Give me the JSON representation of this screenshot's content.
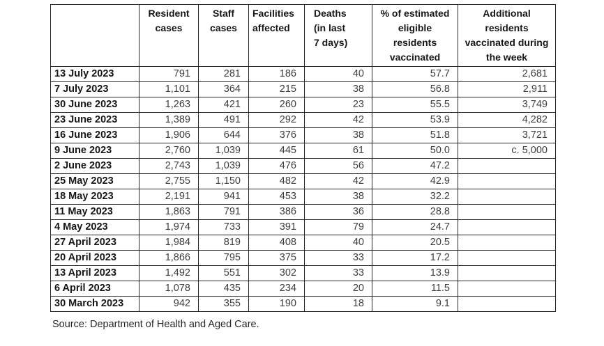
{
  "table": {
    "columns": [
      {
        "id": "date",
        "lines": []
      },
      {
        "id": "resident-cases",
        "lines": [
          "Resident",
          "cases"
        ]
      },
      {
        "id": "staff-cases",
        "lines": [
          "Staff",
          "cases"
        ]
      },
      {
        "id": "facilities-affected",
        "lines": [
          "Facilities",
          "affected"
        ]
      },
      {
        "id": "deaths-last-7-days",
        "lines": [
          "Deaths",
          "(in last",
          "7 days)"
        ]
      },
      {
        "id": "pct-eligible-residents-vaccinated",
        "lines": [
          "% of estimated",
          "eligible",
          "residents",
          "vaccinated"
        ]
      },
      {
        "id": "additional-residents-vaccinated",
        "lines": [
          "Additional",
          "residents",
          "vaccinated during",
          "the week"
        ]
      }
    ],
    "rows": [
      [
        "13 July 2023",
        "791",
        "281",
        "186",
        "40",
        "57.7",
        "2,681"
      ],
      [
        "7 July 2023",
        "1,101",
        "364",
        "215",
        "38",
        "56.8",
        "2,911"
      ],
      [
        "30 June 2023",
        "1,263",
        "421",
        "260",
        "23",
        "55.5",
        "3,749"
      ],
      [
        "23 June 2023",
        "1,389",
        "491",
        "292",
        "42",
        "53.9",
        "4,282"
      ],
      [
        "16 June 2023",
        "1,906",
        "644",
        "376",
        "38",
        "51.8",
        "3,721"
      ],
      [
        "9 June 2023",
        "2,760",
        "1,039",
        "445",
        "61",
        "50.0",
        "c. 5,000"
      ],
      [
        "2 June 2023",
        "2,743",
        "1,039",
        "476",
        "56",
        "47.2",
        ""
      ],
      [
        "25 May 2023",
        "2,755",
        "1,150",
        "482",
        "42",
        "42.9",
        ""
      ],
      [
        "18 May 2023",
        "2,191",
        "941",
        "453",
        "38",
        "32.2",
        ""
      ],
      [
        "11 May 2023",
        "1,863",
        "791",
        "386",
        "36",
        "28.8",
        ""
      ],
      [
        "4 May 2023",
        "1,974",
        "733",
        "391",
        "79",
        "24.7",
        ""
      ],
      [
        "27 April 2023",
        "1,984",
        "819",
        "408",
        "40",
        "20.5",
        ""
      ],
      [
        "20 April 2023",
        "1,866",
        "795",
        "375",
        "33",
        "17.2",
        ""
      ],
      [
        "13 April 2023",
        "1,492",
        "551",
        "302",
        "33",
        "13.9",
        ""
      ],
      [
        "6 April 2023",
        "1,078",
        "435",
        "234",
        "20",
        "11.5",
        ""
      ],
      [
        "30 March 2023",
        "942",
        "355",
        "190",
        "18",
        "9.1",
        ""
      ]
    ]
  },
  "source": "Source: Department of Health and Aged Care."
}
